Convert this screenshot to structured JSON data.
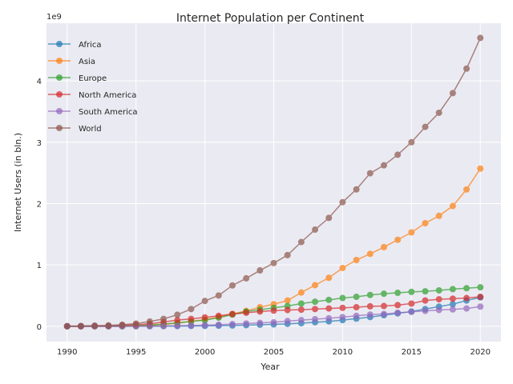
{
  "chart_data": {
    "type": "line",
    "title": "Internet Population per Continent",
    "xlabel": "Year",
    "ylabel": "Internet Users (in bln.)",
    "offset_label": "1e9",
    "xlim": [
      1988.5,
      2021.5
    ],
    "ylim": [
      -250000000.0,
      4940000000.0
    ],
    "xticks": [
      1990,
      1995,
      2000,
      2005,
      2010,
      2015,
      2020
    ],
    "yticks": [
      0,
      1000000000,
      2000000000,
      3000000000,
      4000000000
    ],
    "ytick_labels": [
      "0",
      "1",
      "2",
      "3",
      "4"
    ],
    "grid": true,
    "legend_position": "upper-left",
    "x": [
      1990,
      1991,
      1992,
      1993,
      1994,
      1995,
      1996,
      1997,
      1998,
      1999,
      2000,
      2001,
      2002,
      2003,
      2004,
      2005,
      2006,
      2007,
      2008,
      2009,
      2010,
      2011,
      2012,
      2013,
      2014,
      2015,
      2016,
      2017,
      2018,
      2019,
      2020
    ],
    "series": [
      {
        "name": "Africa",
        "color": "#1f77b4",
        "values": [
          0,
          0,
          0,
          0,
          0,
          500000,
          1000000,
          2000000,
          3000000,
          5000000,
          6000000,
          9000000,
          12000000,
          18000000,
          25000000,
          30000000,
          40000000,
          50000000,
          65000000,
          80000000,
          100000000,
          125000000,
          150000000,
          180000000,
          210000000,
          240000000,
          280000000,
          320000000,
          360000000,
          420000000,
          470000000
        ]
      },
      {
        "name": "Asia",
        "color": "#ff7f0e",
        "values": [
          0,
          0,
          0,
          0,
          1000000,
          5000000,
          15000000,
          30000000,
          50000000,
          80000000,
          110000000,
          150000000,
          200000000,
          250000000,
          310000000,
          360000000,
          420000000,
          550000000,
          670000000,
          790000000,
          950000000,
          1080000000,
          1180000000,
          1290000000,
          1410000000,
          1530000000,
          1680000000,
          1800000000,
          1960000000,
          2230000000,
          2570000000
        ]
      },
      {
        "name": "Europe",
        "color": "#2ca02c",
        "values": [
          0,
          0,
          0,
          1000000,
          3000000,
          10000000,
          20000000,
          35000000,
          55000000,
          80000000,
          100000000,
          140000000,
          190000000,
          240000000,
          270000000,
          300000000,
          330000000,
          370000000,
          400000000,
          430000000,
          460000000,
          480000000,
          510000000,
          530000000,
          545000000,
          560000000,
          570000000,
          585000000,
          605000000,
          620000000,
          635000000
        ]
      },
      {
        "name": "North America",
        "color": "#d62728",
        "values": [
          0,
          1000000,
          3000000,
          6000000,
          15000000,
          25000000,
          40000000,
          70000000,
          100000000,
          120000000,
          145000000,
          170000000,
          200000000,
          220000000,
          240000000,
          255000000,
          265000000,
          270000000,
          280000000,
          290000000,
          300000000,
          310000000,
          325000000,
          330000000,
          345000000,
          370000000,
          420000000,
          440000000,
          450000000,
          460000000,
          480000000
        ]
      },
      {
        "name": "South America",
        "color": "#9467bd",
        "values": [
          0,
          0,
          0,
          0,
          0,
          1000000,
          2000000,
          4000000,
          8000000,
          12000000,
          18000000,
          25000000,
          35000000,
          45000000,
          55000000,
          65000000,
          85000000,
          100000000,
          115000000,
          130000000,
          150000000,
          170000000,
          190000000,
          200000000,
          220000000,
          235000000,
          250000000,
          265000000,
          275000000,
          290000000,
          320000000
        ]
      },
      {
        "name": "World",
        "color": "#8c564b",
        "values": [
          2600000,
          4400000,
          10000000,
          14000000,
          25000000,
          44000000,
          77000000,
          120000000,
          188000000,
          280000000,
          413000000,
          502000000,
          665000000,
          781000000,
          910000000,
          1030000000,
          1160000000,
          1373000000,
          1575000000,
          1766000000,
          2023000000,
          2231000000,
          2494000000,
          2623000000,
          2796000000,
          3000000000,
          3250000000,
          3480000000,
          3800000000,
          4200000000,
          4700000000
        ]
      }
    ]
  }
}
